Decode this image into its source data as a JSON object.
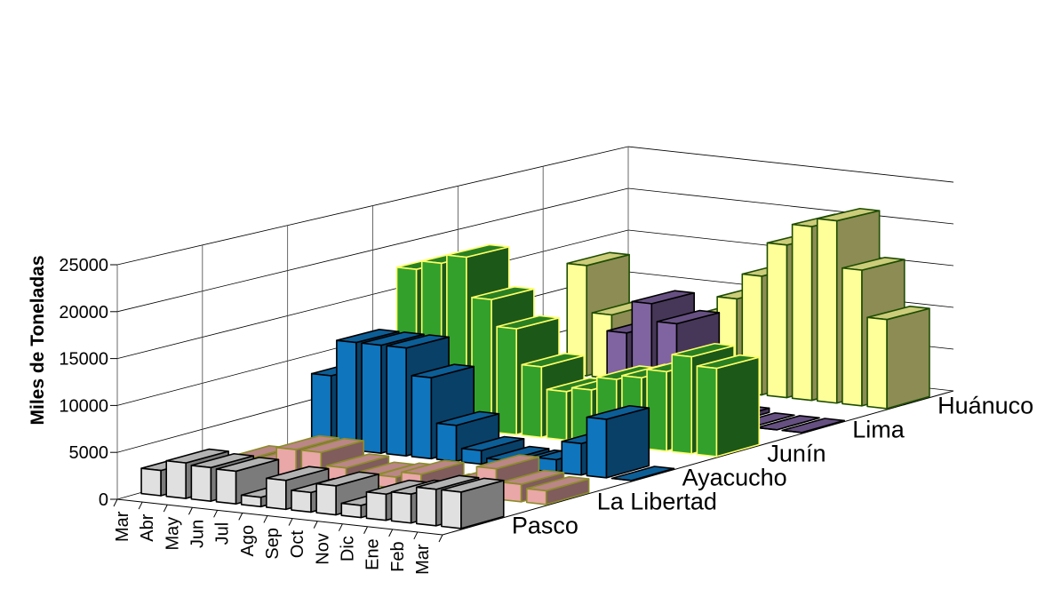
{
  "chart_data": {
    "type": "bar",
    "subtype": "3d-column",
    "title": "",
    "ylabel": "Miles de Toneladas",
    "ylim": [
      0,
      25000
    ],
    "yticks": [
      "0",
      "5000",
      "10000",
      "15000",
      "20000",
      "25000"
    ],
    "categories": [
      "Mar",
      "Abr",
      "May",
      "Jun",
      "Jul",
      "Ago",
      "Sep",
      "Oct",
      "Nov",
      "Dic",
      "Ene",
      "Feb",
      "Mar"
    ],
    "grid": true,
    "series": [
      {
        "name": "Pasco",
        "color": "#e0e0e0",
        "edge": "#000000",
        "values": [
          2700,
          3800,
          3600,
          3500,
          1000,
          3100,
          2100,
          3100,
          1300,
          2800,
          3100,
          3900,
          3900
        ]
      },
      {
        "name": "La Libertad",
        "color": "#e9a7a7",
        "edge": "#8c8c2a",
        "values": [
          1300,
          1300,
          3000,
          3000,
          1600,
          1000,
          1200,
          1800,
          600,
          1600,
          3300,
          1900,
          1500
        ]
      },
      {
        "name": "Ayacucho",
        "color": "#0f75bd",
        "edge": "#000000",
        "values": [
          8000,
          12000,
          12000,
          12000,
          9000,
          4000,
          1500,
          700,
          600,
          1400,
          3500,
          6500,
          0
        ]
      },
      {
        "name": "Junín",
        "color": "#33a02c",
        "edge": "#ffff66",
        "values": [
          17500,
          18500,
          19500,
          15000,
          12000,
          8000,
          5500,
          6000,
          7500,
          8000,
          9000,
          11000,
          10000
        ]
      },
      {
        "name": "Lima",
        "color": "#8064a2",
        "edge": "#000000",
        "values": [
          1800,
          1800,
          1500,
          900,
          3000,
          9300,
          13000,
          11000,
          1000,
          500,
          0,
          0,
          0
        ]
      },
      {
        "name": "Huánuco",
        "color": "#ffff99",
        "edge": "#1e4d00",
        "values": [
          13000,
          7500,
          5500,
          6000,
          6500,
          8500,
          11000,
          14000,
          18000,
          20500,
          21500,
          16000,
          10500
        ]
      }
    ]
  }
}
